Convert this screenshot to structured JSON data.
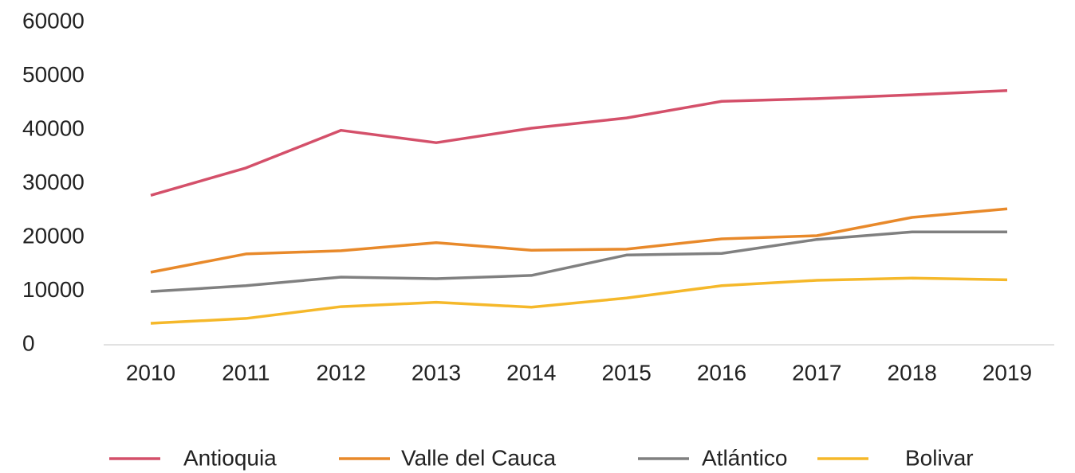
{
  "chart_data": {
    "type": "line",
    "categories": [
      "2010",
      "2011",
      "2012",
      "2013",
      "2014",
      "2015",
      "2016",
      "2017",
      "2018",
      "2019"
    ],
    "series": [
      {
        "name": "Antioquia",
        "color": "#d4506a",
        "values": [
          27800,
          32900,
          39900,
          37600,
          40300,
          42200,
          45300,
          45800,
          46500,
          47300
        ]
      },
      {
        "name": "Valle del Cauca",
        "color": "#e8892a",
        "values": [
          13500,
          16900,
          17500,
          19000,
          17600,
          17800,
          19700,
          20300,
          23700,
          25300
        ]
      },
      {
        "name": "Atlántico",
        "color": "#808080",
        "values": [
          9900,
          11000,
          12600,
          12300,
          12900,
          16700,
          17000,
          19600,
          21000,
          21000
        ]
      },
      {
        "name": "Bolivar",
        "color": "#f5b82a",
        "values": [
          4000,
          4900,
          7100,
          7900,
          7000,
          8700,
          11000,
          12000,
          12400,
          12100
        ]
      }
    ],
    "ylim": [
      0,
      60000
    ],
    "yticks": [
      0,
      10000,
      20000,
      30000,
      40000,
      50000,
      60000
    ],
    "legend": "bottom"
  }
}
